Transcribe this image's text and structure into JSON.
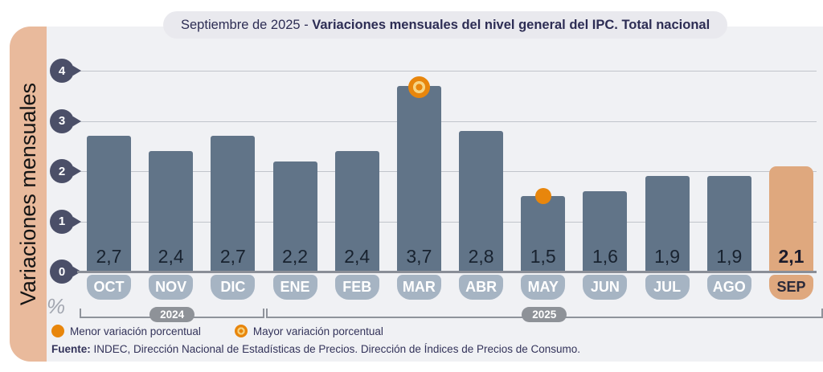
{
  "title": {
    "prefix": "Septiembre de 2025 - ",
    "main": "Variaciones mensuales del nivel general del IPC. Total nacional"
  },
  "sidebar_label": "Variaciones mensuales",
  "axis": {
    "unit_label": "%",
    "ticks": [
      4,
      3,
      2,
      1,
      0
    ],
    "ylim": [
      0,
      4
    ]
  },
  "chart_data": {
    "type": "bar",
    "title": "Septiembre de 2025 - Variaciones mensuales del nivel general del IPC. Total nacional",
    "ylabel": "Variaciones mensuales",
    "unit": "%",
    "categories": [
      "OCT",
      "NOV",
      "DIC",
      "ENE",
      "FEB",
      "MAR",
      "ABR",
      "MAY",
      "JUN",
      "JUL",
      "AGO",
      "SEP"
    ],
    "values": [
      2.7,
      2.4,
      2.7,
      2.2,
      2.4,
      3.7,
      2.8,
      1.5,
      1.6,
      1.9,
      1.9,
      2.1
    ],
    "labels": [
      "2,7",
      "2,4",
      "2,7",
      "2,2",
      "2,4",
      "3,7",
      "2,8",
      "1,5",
      "1,6",
      "1,9",
      "1,9",
      "2,1"
    ],
    "ylim": [
      0,
      4
    ],
    "grid": true,
    "highlight_index": 11,
    "max_marker_index": 5,
    "min_marker_index": 7,
    "year_groups": [
      {
        "label": "2024",
        "from": 0,
        "to": 2
      },
      {
        "label": "2025",
        "from": 3,
        "to": 11
      }
    ],
    "colors": {
      "bar": "#617488",
      "highlight_bar": "#dfa87e",
      "month_pill": "#a6b4c3",
      "highlight_pill": "#dfa87e",
      "marker_orange": "#e8860c",
      "axis_bubble": "#4b4f68",
      "sidebar_peach": "#e9ba9c"
    }
  },
  "legend": [
    {
      "type": "dot",
      "label": "Menor variación porcentual"
    },
    {
      "type": "ring",
      "label": "Mayor variación porcentual"
    }
  ],
  "source": {
    "prefix": "Fuente:",
    "text": " INDEC, Dirección Nacional de Estadísticas de Precios. Dirección de Índices de Precios de Consumo."
  }
}
